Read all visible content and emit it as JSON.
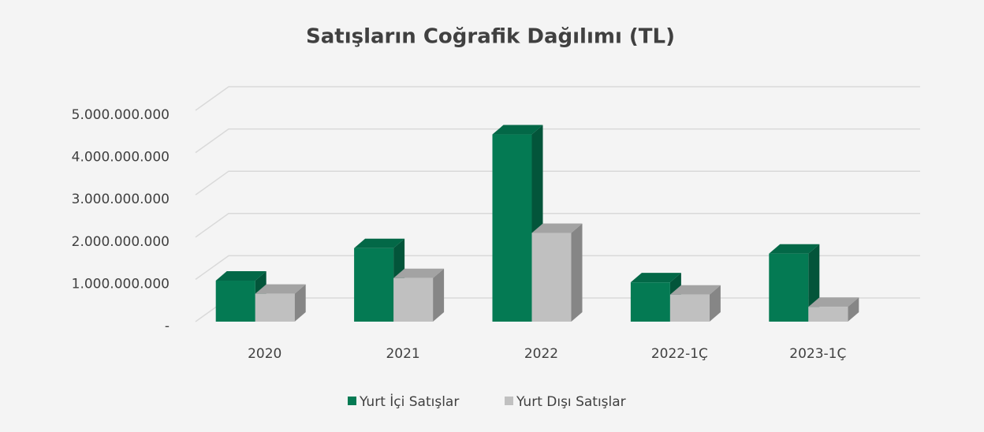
{
  "chart_data": {
    "type": "bar3d",
    "title": "Satışların Coğrafik Dağılımı (TL)",
    "categories": [
      "2020",
      "2021",
      "2022",
      "2022-1Ç",
      "2023-1Ç"
    ],
    "series": [
      {
        "name": "Yurt İçi Satışlar",
        "color": "#047a53",
        "values": [
          970000000,
          1740000000,
          4430000000,
          930000000,
          1610000000
        ]
      },
      {
        "name": "Yurt Dışı Satışlar",
        "color": "#c0c0c0",
        "values": [
          660000000,
          1030000000,
          2100000000,
          640000000,
          350000000
        ]
      }
    ],
    "ylim": [
      0,
      5000000000
    ],
    "yticks": [
      {
        "value": 0,
        "label": "-"
      },
      {
        "value": 1000000000,
        "label": "1.000.000.000"
      },
      {
        "value": 2000000000,
        "label": "2.000.000.000"
      },
      {
        "value": 3000000000,
        "label": "3.000.000.000"
      },
      {
        "value": 4000000000,
        "label": "4.000.000.000"
      },
      {
        "value": 5000000000,
        "label": "5.000.000.000"
      }
    ],
    "grid": true,
    "legend": "bottom"
  }
}
